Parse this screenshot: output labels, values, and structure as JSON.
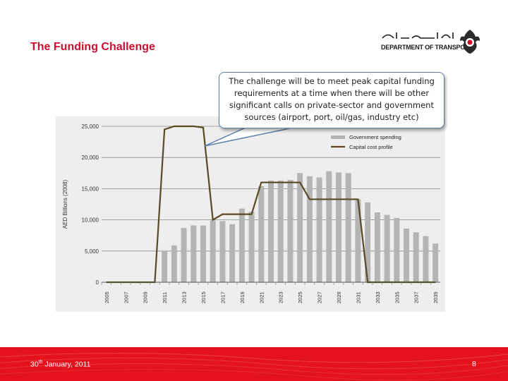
{
  "slide": {
    "title": "The Funding Challenge",
    "logo_text": "DEPARTMENT OF TRANSPORT",
    "logo_arabic": "دائرة النقل",
    "callout": "The challenge will be to meet peak capital funding requirements at a time when there will be other significant calls on private-sector and government sources (airport, port, oil/gas, industry etc)",
    "footer_date_prefix": "30",
    "footer_date_sup": "th",
    "footer_date_suffix": " January, 2011",
    "page_number": "8",
    "colors": {
      "accent": "#c8102e",
      "footer": "#e3121b",
      "bar": "#b4b4b4",
      "line": "#5a4a24"
    }
  },
  "chart_data": {
    "type": "bar",
    "ylabel": "AED Billions (2008)",
    "ylim": [
      0,
      25000
    ],
    "yticks": [
      0,
      5000,
      10000,
      15000,
      20000,
      25000
    ],
    "ytick_labels": [
      "0",
      "5,000",
      "10,000",
      "15,000",
      "20,000",
      "25,000"
    ],
    "xtick_labels": [
      "2005",
      "2007",
      "2009",
      "2011",
      "2013",
      "2015",
      "2017",
      "2019",
      "2021",
      "2023",
      "2025",
      "2027",
      "2029",
      "2031",
      "2033",
      "2035",
      "2037",
      "2039"
    ],
    "x": [
      2005,
      2006,
      2007,
      2008,
      2009,
      2010,
      2011,
      2012,
      2013,
      2014,
      2015,
      2016,
      2017,
      2018,
      2019,
      2020,
      2021,
      2022,
      2023,
      2024,
      2025,
      2026,
      2027,
      2028,
      2029,
      2030,
      2031,
      2032,
      2033,
      2034,
      2035,
      2036,
      2037,
      2038,
      2039
    ],
    "legend": [
      "Government spending",
      "Capital cost profile"
    ],
    "legend_position": "top-right",
    "grid": true,
    "series": [
      {
        "name": "Government spending",
        "kind": "bar",
        "values": [
          0,
          0,
          0,
          0,
          0,
          0,
          5000,
          5900,
          8700,
          9100,
          9100,
          9900,
          9800,
          9300,
          11800,
          11300,
          15400,
          16300,
          16300,
          16400,
          17500,
          17000,
          16800,
          17800,
          17600,
          17500,
          13300,
          12800,
          11200,
          10800,
          10300,
          8600,
          8000,
          7400,
          6200
        ]
      },
      {
        "name": "Capital cost profile",
        "kind": "line",
        "values": [
          0,
          0,
          0,
          0,
          0,
          0,
          24500,
          25000,
          25000,
          25000,
          24800,
          10000,
          10900,
          10900,
          10900,
          10900,
          16000,
          16000,
          16000,
          16000,
          16000,
          13300,
          13300,
          13300,
          13300,
          13300,
          13300,
          0,
          0,
          0,
          0,
          0,
          0,
          0,
          0
        ]
      }
    ]
  }
}
